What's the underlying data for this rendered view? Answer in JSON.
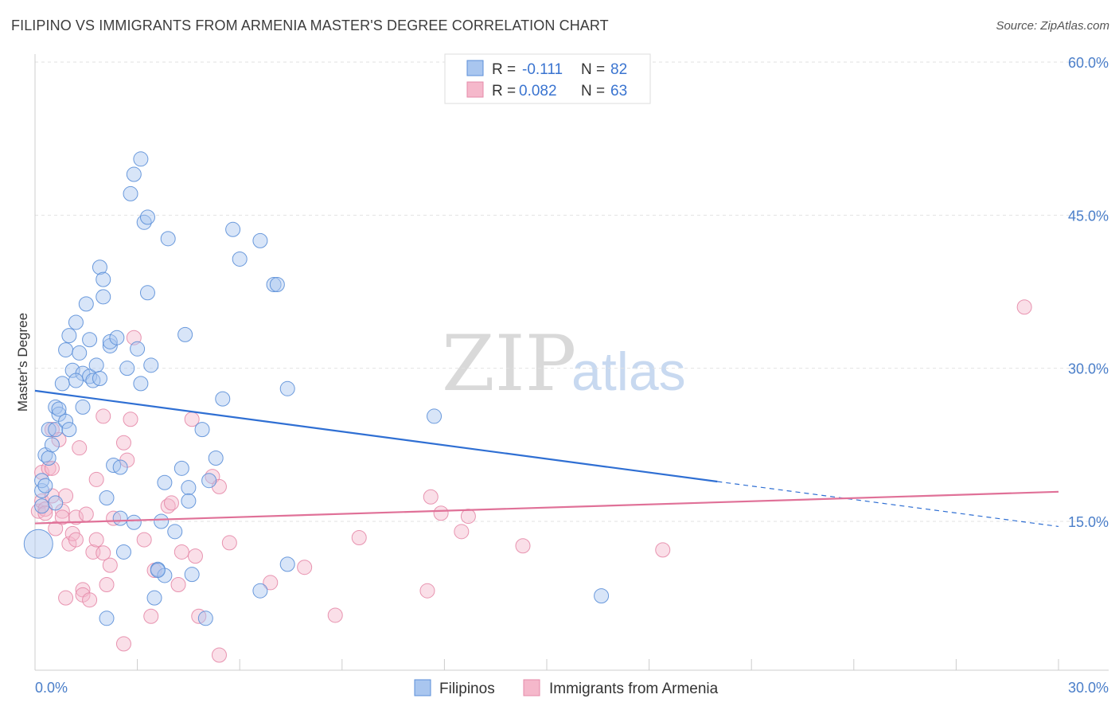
{
  "title": "FILIPINO VS IMMIGRANTS FROM ARMENIA MASTER'S DEGREE CORRELATION CHART",
  "source": "Source: ZipAtlas.com",
  "watermark": {
    "zip": "ZIP",
    "atlas": "atlas"
  },
  "colors": {
    "blue_fill": "#a9c6ef",
    "blue_stroke": "#5b8fd8",
    "blue_line": "#2f6fd3",
    "pink_fill": "#f5b8cb",
    "pink_stroke": "#e58aa8",
    "pink_line": "#e07198",
    "grid": "#e2e2e2",
    "tick_text": "#4a7ec9"
  },
  "legend": {
    "rows": [
      {
        "r_label": "R =",
        "r_value": "-0.111",
        "n_label": "N =",
        "n_value": "82"
      },
      {
        "r_label": "R =",
        "r_value": "0.082",
        "n_label": "N =",
        "n_value": "63"
      }
    ]
  },
  "chart_data": {
    "type": "scatter",
    "title": "FILIPINO VS IMMIGRANTS FROM ARMENIA MASTER'S DEGREE CORRELATION CHART",
    "xlabel": "",
    "ylabel": "Master's Degree",
    "xlim": [
      0,
      30
    ],
    "ylim": [
      0,
      62
    ],
    "x_tick_labels": [
      "0.0%",
      "30.0%"
    ],
    "y_ticks": [
      15,
      30,
      45,
      60
    ],
    "y_tick_labels": [
      "15.0%",
      "30.0%",
      "45.0%",
      "60.0%"
    ],
    "legend_position": "top-center",
    "series": [
      {
        "name": "Filipinos",
        "r": -0.111,
        "n": 82,
        "trend": {
          "x0": 0,
          "y0": 27.8,
          "x1": 20,
          "y1": 18.9,
          "dashed_to_x": 30,
          "dashed_to_y": 14.5
        },
        "points": [
          [
            0.1,
            12.8
          ],
          [
            0.2,
            16.5
          ],
          [
            0.2,
            18.0
          ],
          [
            0.2,
            19.0
          ],
          [
            0.3,
            21.5
          ],
          [
            0.4,
            21.2
          ],
          [
            0.4,
            24.0
          ],
          [
            0.5,
            22.5
          ],
          [
            0.6,
            26.2
          ],
          [
            0.6,
            24.0
          ],
          [
            0.7,
            25.5
          ],
          [
            0.7,
            26.0
          ],
          [
            0.8,
            28.5
          ],
          [
            0.9,
            24.8
          ],
          [
            0.9,
            31.8
          ],
          [
            1.0,
            33.2
          ],
          [
            1.0,
            24.0
          ],
          [
            1.1,
            29.8
          ],
          [
            1.2,
            34.5
          ],
          [
            1.3,
            31.5
          ],
          [
            1.4,
            29.5
          ],
          [
            1.4,
            26.2
          ],
          [
            1.5,
            36.3
          ],
          [
            1.6,
            32.8
          ],
          [
            1.6,
            29.2
          ],
          [
            1.7,
            28.8
          ],
          [
            1.8,
            30.3
          ],
          [
            1.9,
            39.9
          ],
          [
            2.0,
            37.0
          ],
          [
            2.0,
            38.7
          ],
          [
            2.1,
            17.3
          ],
          [
            2.2,
            32.2
          ],
          [
            2.2,
            32.6
          ],
          [
            2.3,
            20.5
          ],
          [
            2.4,
            33.0
          ],
          [
            2.5,
            20.3
          ],
          [
            2.5,
            15.3
          ],
          [
            2.6,
            12.0
          ],
          [
            2.7,
            30.0
          ],
          [
            2.8,
            47.1
          ],
          [
            2.9,
            49.0
          ],
          [
            3.0,
            31.9
          ],
          [
            3.1,
            28.5
          ],
          [
            3.1,
            50.5
          ],
          [
            3.2,
            44.3
          ],
          [
            3.3,
            44.8
          ],
          [
            3.3,
            37.4
          ],
          [
            3.4,
            30.3
          ],
          [
            3.5,
            7.5
          ],
          [
            3.6,
            10.3
          ],
          [
            3.7,
            15.0
          ],
          [
            3.8,
            18.8
          ],
          [
            3.8,
            9.7
          ],
          [
            3.9,
            42.7
          ],
          [
            4.1,
            14.0
          ],
          [
            4.3,
            20.2
          ],
          [
            4.4,
            33.3
          ],
          [
            4.5,
            18.3
          ],
          [
            4.5,
            17.0
          ],
          [
            4.6,
            9.8
          ],
          [
            4.9,
            24.0
          ],
          [
            5.0,
            5.5
          ],
          [
            5.1,
            19.0
          ],
          [
            5.3,
            21.2
          ],
          [
            5.5,
            27.0
          ],
          [
            5.8,
            43.6
          ],
          [
            6.0,
            40.7
          ],
          [
            6.6,
            8.2
          ],
          [
            6.6,
            42.5
          ],
          [
            7.0,
            38.2
          ],
          [
            7.1,
            38.2
          ],
          [
            7.4,
            28.0
          ],
          [
            7.4,
            10.8
          ],
          [
            11.7,
            25.3
          ],
          [
            16.6,
            7.7
          ],
          [
            2.1,
            5.5
          ],
          [
            1.2,
            28.8
          ],
          [
            0.3,
            18.5
          ],
          [
            2.9,
            14.9
          ],
          [
            0.6,
            16.8
          ],
          [
            1.9,
            29.0
          ],
          [
            3.6,
            10.2
          ]
        ]
      },
      {
        "name": "Immigrants from Armenia",
        "r": 0.082,
        "n": 63,
        "trend": {
          "x0": 0,
          "y0": 14.8,
          "x1": 30,
          "y1": 17.9
        },
        "points": [
          [
            0.1,
            16.0
          ],
          [
            0.2,
            17.0
          ],
          [
            0.2,
            19.8
          ],
          [
            0.3,
            16.2
          ],
          [
            0.4,
            20.2
          ],
          [
            0.5,
            20.2
          ],
          [
            0.5,
            17.5
          ],
          [
            0.5,
            24.0
          ],
          [
            0.6,
            14.3
          ],
          [
            0.7,
            23.0
          ],
          [
            0.8,
            16.0
          ],
          [
            0.8,
            15.4
          ],
          [
            0.9,
            17.5
          ],
          [
            0.9,
            7.5
          ],
          [
            1.0,
            12.8
          ],
          [
            1.1,
            13.8
          ],
          [
            1.2,
            15.4
          ],
          [
            1.2,
            13.2
          ],
          [
            1.3,
            22.2
          ],
          [
            1.4,
            8.3
          ],
          [
            1.4,
            7.8
          ],
          [
            1.5,
            15.7
          ],
          [
            1.6,
            7.3
          ],
          [
            1.7,
            12.0
          ],
          [
            1.8,
            13.2
          ],
          [
            1.8,
            19.1
          ],
          [
            2.0,
            25.3
          ],
          [
            2.1,
            8.8
          ],
          [
            2.2,
            10.7
          ],
          [
            2.3,
            15.3
          ],
          [
            2.6,
            22.7
          ],
          [
            2.6,
            3.0
          ],
          [
            2.7,
            21.0
          ],
          [
            2.8,
            25.0
          ],
          [
            2.9,
            33.0
          ],
          [
            3.2,
            13.2
          ],
          [
            3.4,
            5.7
          ],
          [
            3.5,
            10.2
          ],
          [
            3.9,
            16.5
          ],
          [
            4.2,
            8.8
          ],
          [
            4.3,
            12.0
          ],
          [
            4.6,
            25.0
          ],
          [
            4.7,
            11.6
          ],
          [
            4.8,
            5.7
          ],
          [
            5.2,
            19.4
          ],
          [
            5.4,
            18.4
          ],
          [
            5.4,
            1.9
          ],
          [
            5.7,
            12.9
          ],
          [
            6.9,
            9.0
          ],
          [
            7.9,
            10.5
          ],
          [
            8.8,
            5.8
          ],
          [
            9.5,
            13.4
          ],
          [
            11.5,
            8.2
          ],
          [
            11.6,
            17.4
          ],
          [
            11.9,
            15.8
          ],
          [
            12.5,
            14.0
          ],
          [
            12.7,
            15.5
          ],
          [
            14.3,
            12.6
          ],
          [
            18.4,
            12.2
          ],
          [
            29.0,
            36.0
          ],
          [
            4.0,
            16.8
          ],
          [
            2.0,
            11.9
          ],
          [
            0.3,
            15.8
          ]
        ]
      }
    ]
  },
  "bottom_legend": [
    "Filipinos",
    "Immigrants from Armenia"
  ]
}
